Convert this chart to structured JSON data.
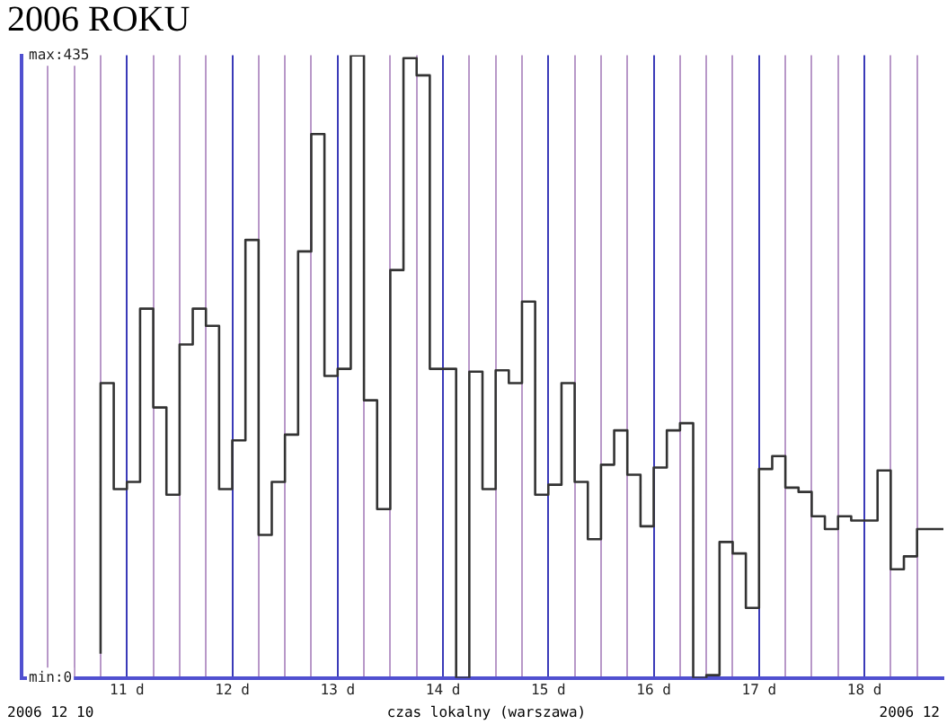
{
  "chart_data": {
    "type": "step",
    "title": "2006 ROKU",
    "xlabel": "czas lokalny (warszawa)",
    "annotations": [
      "2006 12 10",
      "2006 12"
    ],
    "x": [
      "2006-12-10T18:00",
      "2006-12-10T21:00",
      "2006-12-11T00:00",
      "2006-12-11T03:00",
      "2006-12-11T06:00",
      "2006-12-11T09:00",
      "2006-12-11T12:00",
      "2006-12-11T15:00",
      "2006-12-11T18:00",
      "2006-12-11T21:00",
      "2006-12-12T00:00",
      "2006-12-12T03:00",
      "2006-12-12T06:00",
      "2006-12-12T09:00",
      "2006-12-12T12:00",
      "2006-12-12T15:00",
      "2006-12-12T18:00",
      "2006-12-12T21:00",
      "2006-12-13T00:00",
      "2006-12-13T03:00",
      "2006-12-13T06:00",
      "2006-12-13T09:00",
      "2006-12-13T12:00",
      "2006-12-13T15:00",
      "2006-12-13T18:00",
      "2006-12-13T21:00",
      "2006-12-14T00:00",
      "2006-12-14T03:00",
      "2006-12-14T06:00",
      "2006-12-14T09:00",
      "2006-12-14T12:00",
      "2006-12-14T15:00",
      "2006-12-14T18:00",
      "2006-12-14T21:00",
      "2006-12-15T00:00",
      "2006-12-15T03:00",
      "2006-12-15T06:00",
      "2006-12-15T09:00",
      "2006-12-15T12:00",
      "2006-12-15T15:00",
      "2006-12-15T18:00",
      "2006-12-15T21:00",
      "2006-12-16T00:00",
      "2006-12-16T03:00",
      "2006-12-16T06:00",
      "2006-12-16T09:00",
      "2006-12-16T12:00",
      "2006-12-16T15:00",
      "2006-12-16T18:00",
      "2006-12-16T21:00",
      "2006-12-17T00:00",
      "2006-12-17T03:00",
      "2006-12-17T06:00",
      "2006-12-17T09:00",
      "2006-12-17T12:00",
      "2006-12-17T15:00",
      "2006-12-17T18:00",
      "2006-12-17T21:00",
      "2006-12-18T00:00",
      "2006-12-18T03:00",
      "2006-12-18T06:00",
      "2006-12-18T09:00",
      "2006-12-18T12:00",
      "2006-12-18T15:00",
      "2006-12-18T18:00"
    ],
    "series": [
      {
        "color": "#333333",
        "values": [
          17,
          206,
          132,
          137,
          258,
          189,
          128,
          233,
          258,
          246,
          132,
          166,
          306,
          100,
          137,
          170,
          298,
          380,
          211,
          216,
          435,
          194,
          118,
          285,
          433,
          421,
          216,
          216,
          0,
          214,
          132,
          215,
          206,
          263,
          128,
          135,
          206,
          137,
          97,
          149,
          173,
          142,
          106,
          147,
          173,
          178,
          0,
          2,
          95,
          87,
          49,
          146,
          155,
          133,
          130,
          113,
          104,
          113,
          110,
          110,
          145,
          76,
          85,
          104,
          104
        ]
      }
    ],
    "xlim": [
      "2006-12-10T00:00",
      "2006-12-18T18:00"
    ],
    "xticks": [
      {
        "value": "2006-12-10T06:00",
        "label": null
      },
      {
        "value": "2006-12-10T12:00",
        "label": null
      },
      {
        "value": "2006-12-10T18:00",
        "label": null
      },
      {
        "value": "2006-12-11",
        "label": "11 d"
      },
      {
        "value": "2006-12-11T06:00",
        "label": null
      },
      {
        "value": "2006-12-11T12:00",
        "label": null
      },
      {
        "value": "2006-12-11T18:00",
        "label": null
      },
      {
        "value": "2006-12-12",
        "label": "12 d"
      },
      {
        "value": "2006-12-12T06:00",
        "label": null
      },
      {
        "value": "2006-12-12T12:00",
        "label": null
      },
      {
        "value": "2006-12-12T18:00",
        "label": null
      },
      {
        "value": "2006-12-13",
        "label": "13 d"
      },
      {
        "value": "2006-12-13T06:00",
        "label": null
      },
      {
        "value": "2006-12-13T12:00",
        "label": null
      },
      {
        "value": "2006-12-13T18:00",
        "label": null
      },
      {
        "value": "2006-12-14",
        "label": "14 d"
      },
      {
        "value": "2006-12-14T06:00",
        "label": null
      },
      {
        "value": "2006-12-14T12:00",
        "label": null
      },
      {
        "value": "2006-12-14T18:00",
        "label": null
      },
      {
        "value": "2006-12-15",
        "label": "15 d"
      },
      {
        "value": "2006-12-15T06:00",
        "label": null
      },
      {
        "value": "2006-12-15T12:00",
        "label": null
      },
      {
        "value": "2006-12-15T18:00",
        "label": null
      },
      {
        "value": "2006-12-16",
        "label": "16 d"
      },
      {
        "value": "2006-12-16T06:00",
        "label": null
      },
      {
        "value": "2006-12-16T12:00",
        "label": null
      },
      {
        "value": "2006-12-16T18:00",
        "label": null
      },
      {
        "value": "2006-12-17",
        "label": "17 d"
      },
      {
        "value": "2006-12-17T06:00",
        "label": null
      },
      {
        "value": "2006-12-17T12:00",
        "label": null
      },
      {
        "value": "2006-12-17T18:00",
        "label": null
      },
      {
        "value": "2006-12-18",
        "label": "18 d"
      },
      {
        "value": "2006-12-18T06:00",
        "label": null
      },
      {
        "value": "2006-12-18T12:00",
        "label": null
      }
    ],
    "ylim": [
      0,
      435
    ],
    "yticks": [
      {
        "value": 0,
        "label": "min:0"
      },
      {
        "value": 435,
        "label": "max:435"
      }
    ],
    "grid": "x",
    "legend": false,
    "marker": "none",
    "line_style": "solid"
  }
}
